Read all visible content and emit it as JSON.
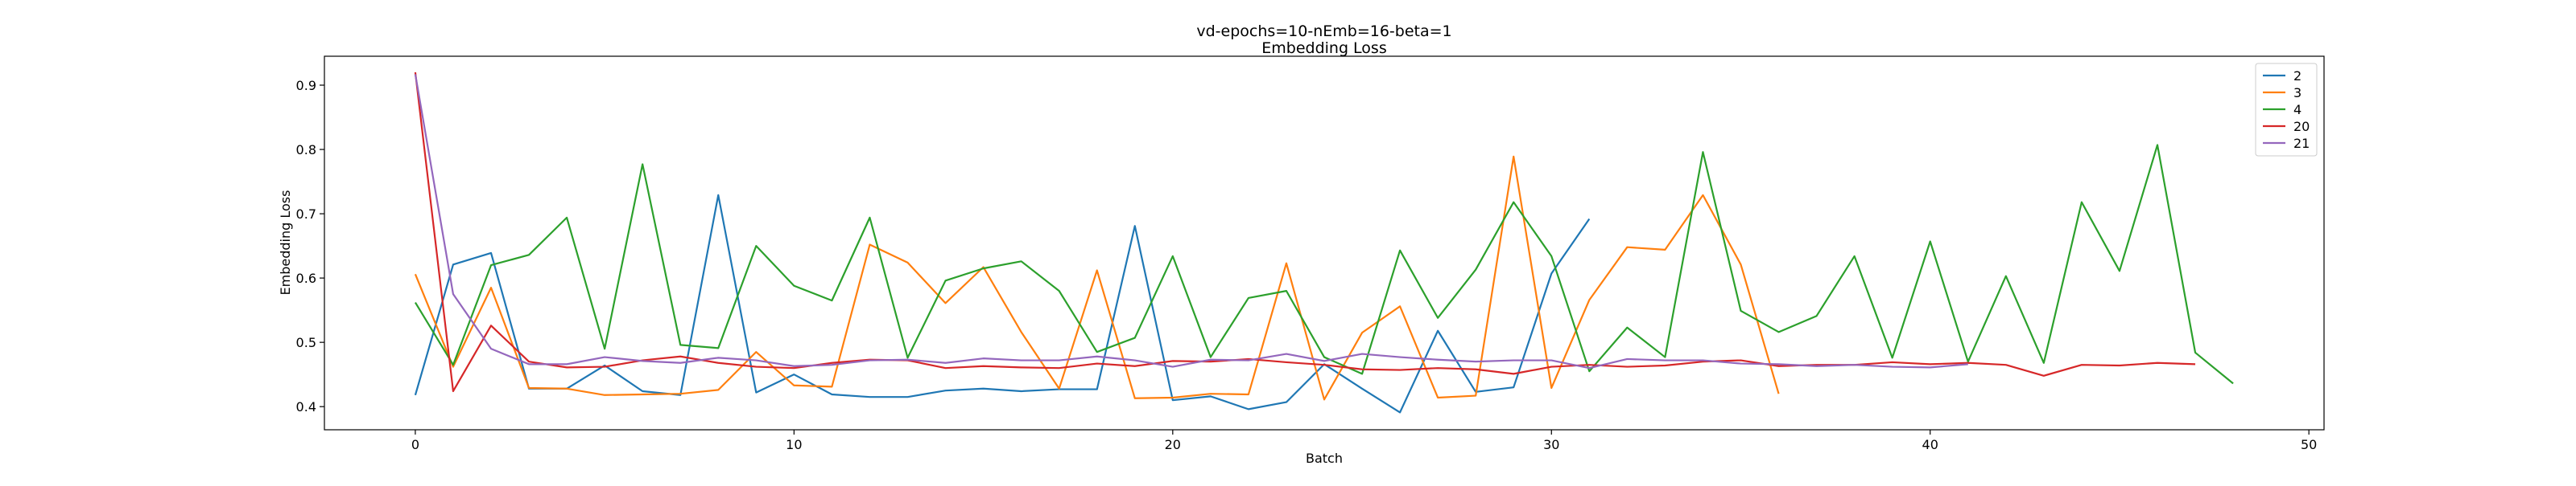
{
  "chart_data": {
    "type": "line",
    "title": "vd-epochs=10-nEmb=16-beta=1",
    "subtitle": "Embedding Loss",
    "xlabel": "Batch",
    "ylabel": "Embedding Loss",
    "xlim": [
      -2.4,
      50.4
    ],
    "ylim": [
      0.364,
      0.945
    ],
    "xticks": [
      0,
      10,
      20,
      30,
      40,
      50
    ],
    "yticks": [
      0.4,
      0.5,
      0.6,
      0.7,
      0.8,
      0.9
    ],
    "xtick_labels": [
      "0",
      "10",
      "20",
      "30",
      "40",
      "50"
    ],
    "ytick_labels": [
      "0.4",
      "0.5",
      "0.6",
      "0.7",
      "0.8",
      "0.9"
    ],
    "grid": false,
    "legend_position": "top-right",
    "series": [
      {
        "name": "2",
        "color": "#1f77b4",
        "values": [
          0.418,
          0.621,
          0.639,
          0.428,
          0.428,
          0.464,
          0.424,
          0.418,
          0.729,
          0.422,
          0.45,
          0.419,
          0.415,
          0.415,
          0.425,
          0.428,
          0.424,
          0.427,
          0.427,
          0.681,
          0.41,
          0.416,
          0.396,
          0.407,
          0.466,
          0.428,
          0.391,
          0.518,
          0.423,
          0.43,
          0.607,
          0.692
        ]
      },
      {
        "name": "3",
        "color": "#ff7f0e",
        "values": [
          0.606,
          0.462,
          0.585,
          0.429,
          0.428,
          0.418,
          0.419,
          0.42,
          0.426,
          0.485,
          0.433,
          0.431,
          0.652,
          0.624,
          0.561,
          0.617,
          0.516,
          0.428,
          0.612,
          0.413,
          0.414,
          0.42,
          0.419,
          0.623,
          0.411,
          0.515,
          0.556,
          0.414,
          0.417,
          0.789,
          0.429,
          0.566,
          0.648,
          0.644,
          0.729,
          0.621,
          0.42
        ]
      },
      {
        "name": "4",
        "color": "#2ca02c",
        "values": [
          0.562,
          0.465,
          0.62,
          0.636,
          0.694,
          0.49,
          0.777,
          0.496,
          0.491,
          0.65,
          0.588,
          0.565,
          0.694,
          0.476,
          0.596,
          0.615,
          0.626,
          0.58,
          0.485,
          0.507,
          0.634,
          0.477,
          0.569,
          0.58,
          0.477,
          0.451,
          0.643,
          0.538,
          0.613,
          0.718,
          0.634,
          0.455,
          0.523,
          0.477,
          0.796,
          0.549,
          0.516,
          0.541,
          0.634,
          0.476,
          0.657,
          0.47,
          0.603,
          0.468,
          0.718,
          0.611,
          0.807,
          0.484,
          0.436
        ]
      },
      {
        "name": "20",
        "color": "#d62728",
        "values": [
          0.92,
          0.424,
          0.526,
          0.47,
          0.461,
          0.462,
          0.472,
          0.478,
          0.468,
          0.462,
          0.46,
          0.468,
          0.473,
          0.472,
          0.46,
          0.463,
          0.461,
          0.46,
          0.467,
          0.463,
          0.471,
          0.47,
          0.474,
          0.469,
          0.465,
          0.458,
          0.457,
          0.46,
          0.458,
          0.451,
          0.462,
          0.465,
          0.462,
          0.464,
          0.47,
          0.472,
          0.463,
          0.465,
          0.465,
          0.469,
          0.466,
          0.468,
          0.465,
          0.448,
          0.465,
          0.464,
          0.468,
          0.466
        ]
      },
      {
        "name": "21",
        "color": "#9467bd",
        "values": [
          0.917,
          0.575,
          0.49,
          0.466,
          0.466,
          0.477,
          0.471,
          0.468,
          0.476,
          0.472,
          0.463,
          0.465,
          0.472,
          0.473,
          0.468,
          0.475,
          0.472,
          0.472,
          0.478,
          0.472,
          0.462,
          0.473,
          0.472,
          0.482,
          0.471,
          0.482,
          0.477,
          0.473,
          0.47,
          0.472,
          0.472,
          0.46,
          0.474,
          0.472,
          0.472,
          0.467,
          0.466,
          0.463,
          0.465,
          0.462,
          0.461,
          0.466
        ]
      }
    ]
  }
}
